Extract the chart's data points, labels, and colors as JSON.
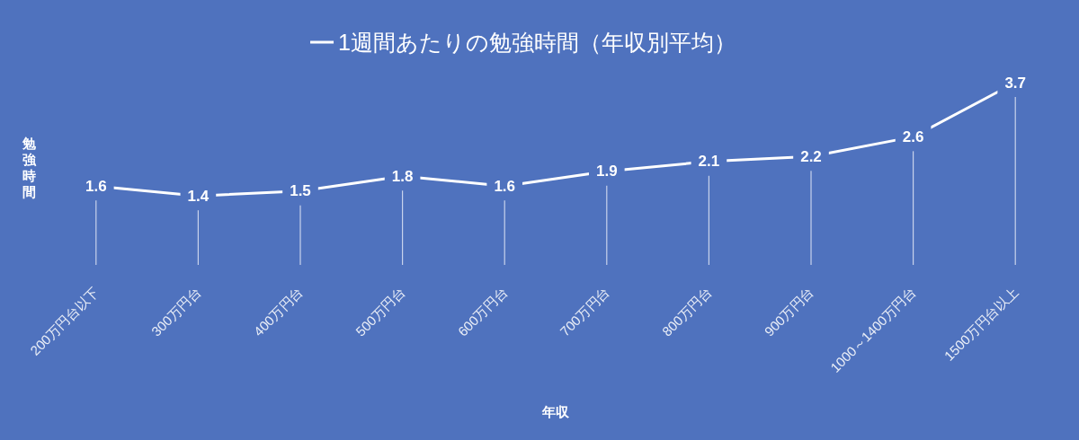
{
  "chart_data": {
    "type": "line",
    "xlabel": "年収",
    "ylabel": "勉強時間",
    "categories": [
      "200万円台以下",
      "300万円台",
      "400万円台",
      "500万円台",
      "600万円台",
      "700万円台",
      "800万円台",
      "900万円台",
      "1000～1400万円台",
      "1500万円台以上"
    ],
    "series": [
      {
        "name": "1週間あたりの勉強時間（年収別平均）",
        "color": "#ffffff",
        "values": [
          1.6,
          1.4,
          1.5,
          1.8,
          1.6,
          1.9,
          2.1,
          2.2,
          2.6,
          3.7
        ]
      }
    ],
    "tick_labels": "x",
    "grid": "x",
    "legend": "top",
    "line_style": "solid",
    "data_labels": true
  }
}
